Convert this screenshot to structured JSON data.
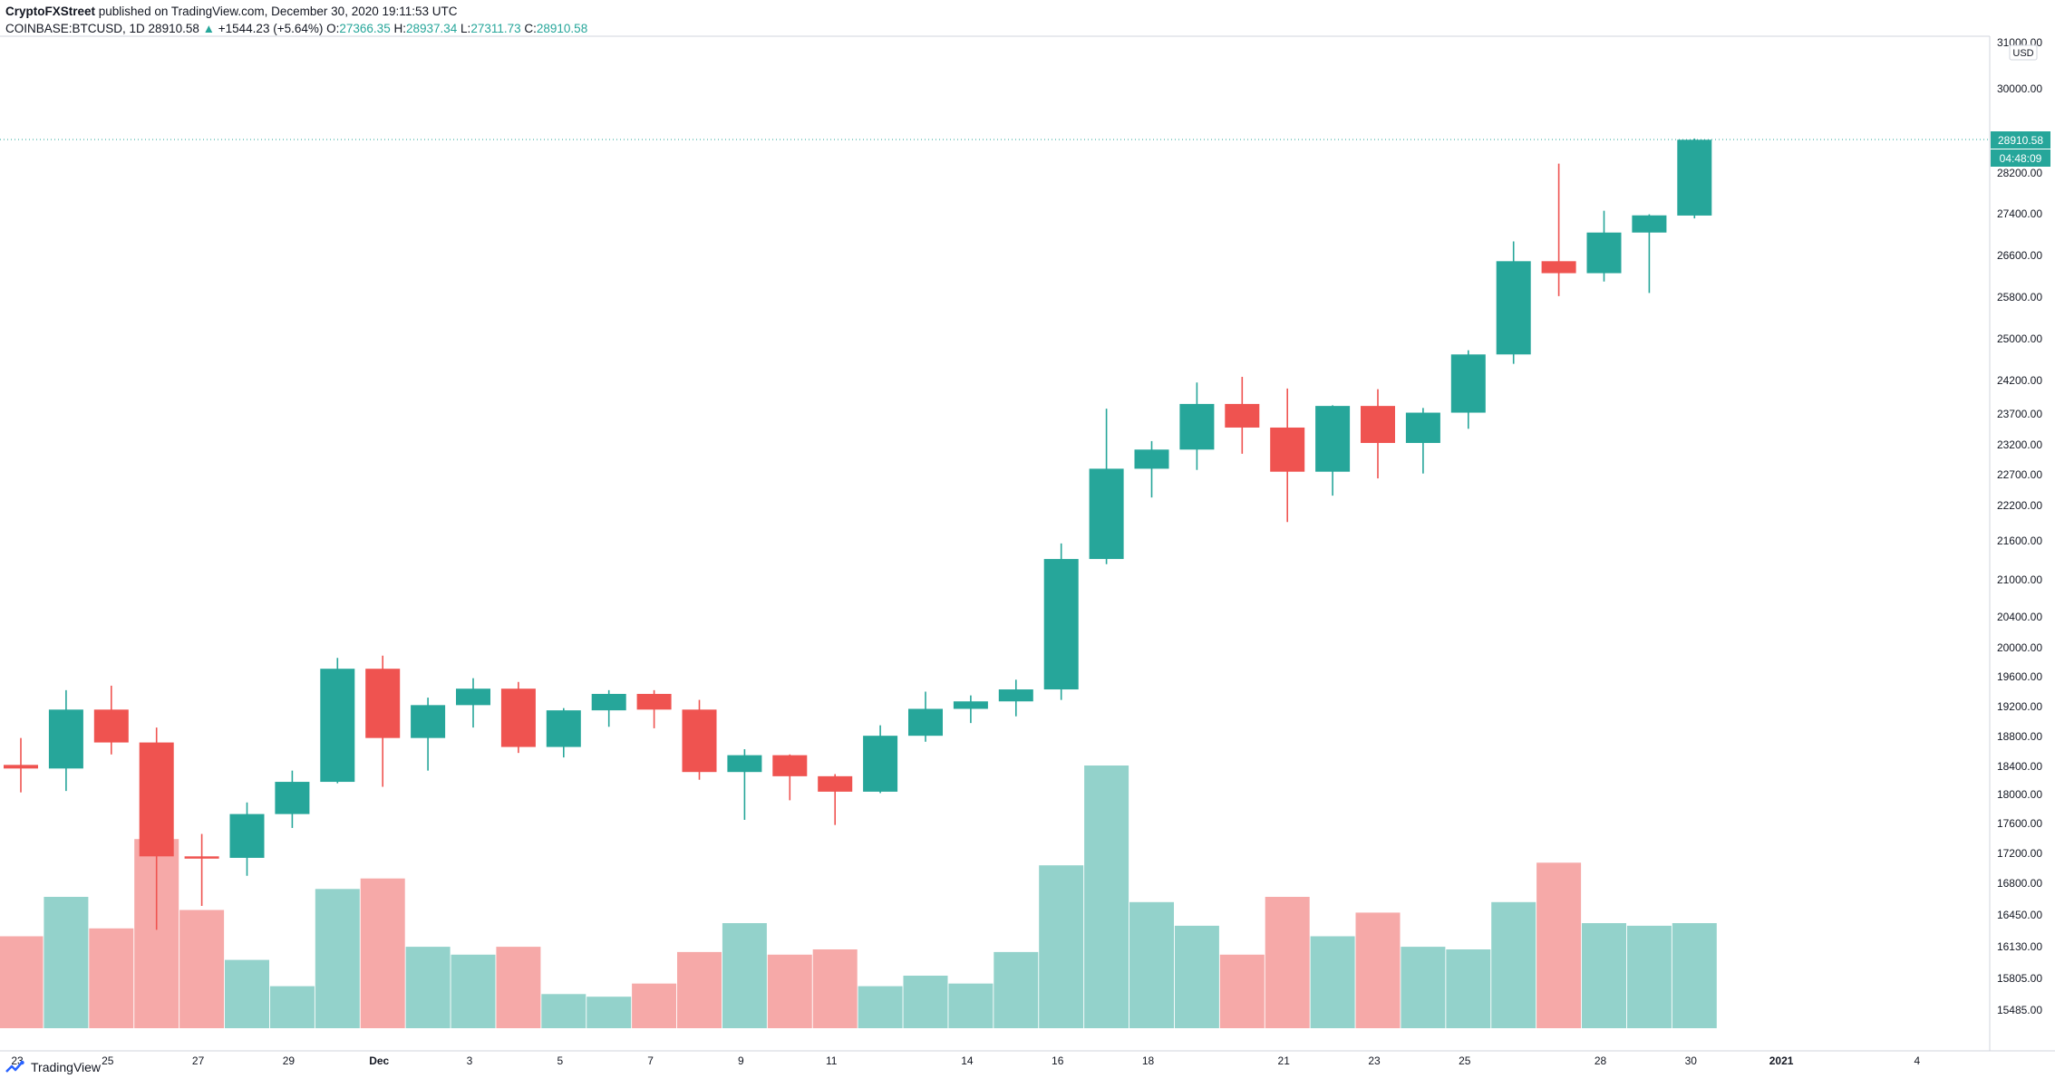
{
  "header": {
    "publisher": "CryptoFXStreet",
    "published_text": "published on TradingView.com, December 30, 2020 19:11:53 UTC",
    "symbol": "COINBASE:BTCUSD, 1D",
    "last": "28910.58",
    "change": "+1544.23 (+5.64%)",
    "open_label": "O:",
    "open": "27366.35",
    "high_label": "H:",
    "high": "28937.34",
    "low_label": "L:",
    "low": "27311.73",
    "close_label": "C:",
    "close": "28910.58"
  },
  "price_scale": {
    "currency": "USD",
    "last_price_tag": "28910.58",
    "countdown_tag": "04:48:09"
  },
  "footer": {
    "brand": "TradingView"
  },
  "colors": {
    "up": "#26a69a",
    "down": "#ef5350",
    "vol_up": "#93d2cb",
    "vol_down": "#f6a9a8",
    "grid": "#ffffff",
    "axis_text": "#131722"
  },
  "chart_data": {
    "type": "candlestick",
    "symbol": "COINBASE:BTCUSD",
    "interval": "1D",
    "y_ticks": [
      31000,
      30000,
      28200,
      27400,
      26600,
      25800,
      25000,
      24200,
      23700,
      23200,
      22700,
      22200,
      21600,
      21000,
      20400,
      20000,
      19600,
      19200,
      18800,
      18400,
      18000,
      17600,
      17200,
      16800,
      16450,
      16130,
      15805,
      15485
    ],
    "y_tick_labels": [
      "31000.00",
      "30000.00",
      "28200.00",
      "27400.00",
      "26600.00",
      "25800.00",
      "25000.00",
      "24200.00",
      "23700.00",
      "23200.00",
      "22700.00",
      "22200.00",
      "21600.00",
      "21000.00",
      "20400.00",
      "20000.00",
      "19600.00",
      "19200.00",
      "18800.00",
      "18400.00",
      "18000.00",
      "17600.00",
      "17200.00",
      "16800.00",
      "16450.00",
      "16130.00",
      "15805.00",
      "15485.00"
    ],
    "x_tick_labels": [
      {
        "label": "23",
        "date": "2020-11-23"
      },
      {
        "label": "25",
        "date": "2020-11-25"
      },
      {
        "label": "27",
        "date": "2020-11-27"
      },
      {
        "label": "29",
        "date": "2020-11-29"
      },
      {
        "label": "Dec",
        "date": "2020-12-01"
      },
      {
        "label": "3",
        "date": "2020-12-03"
      },
      {
        "label": "5",
        "date": "2020-12-05"
      },
      {
        "label": "7",
        "date": "2020-12-07"
      },
      {
        "label": "9",
        "date": "2020-12-09"
      },
      {
        "label": "11",
        "date": "2020-12-11"
      },
      {
        "label": "14",
        "date": "2020-12-14"
      },
      {
        "label": "16",
        "date": "2020-12-16"
      },
      {
        "label": "18",
        "date": "2020-12-18"
      },
      {
        "label": "21",
        "date": "2020-12-21"
      },
      {
        "label": "23",
        "date": "2020-12-23"
      },
      {
        "label": "25",
        "date": "2020-12-25"
      },
      {
        "label": "28",
        "date": "2020-12-28"
      },
      {
        "label": "30",
        "date": "2020-12-30"
      },
      {
        "label": "2021",
        "date": "2021-01-01"
      },
      {
        "label": "4",
        "date": "2021-01-04"
      }
    ],
    "candles": [
      {
        "date": "2020-11-23",
        "o": 18420,
        "h": 18780,
        "l": 18030,
        "c": 18370
      },
      {
        "date": "2020-11-24",
        "o": 18370,
        "h": 19420,
        "l": 18050,
        "c": 19160
      },
      {
        "date": "2020-11-25",
        "o": 19160,
        "h": 19480,
        "l": 18560,
        "c": 18720
      },
      {
        "date": "2020-11-26",
        "o": 18720,
        "h": 18920,
        "l": 16300,
        "c": 17160
      },
      {
        "date": "2020-11-27",
        "o": 17160,
        "h": 17460,
        "l": 16550,
        "c": 17140
      },
      {
        "date": "2020-11-28",
        "o": 17140,
        "h": 17890,
        "l": 16900,
        "c": 17730
      },
      {
        "date": "2020-11-29",
        "o": 17730,
        "h": 18340,
        "l": 17540,
        "c": 18180
      },
      {
        "date": "2020-11-30",
        "o": 18180,
        "h": 19860,
        "l": 18160,
        "c": 19710
      },
      {
        "date": "2020-12-01",
        "o": 19710,
        "h": 19890,
        "l": 18110,
        "c": 18780
      },
      {
        "date": "2020-12-02",
        "o": 18780,
        "h": 19320,
        "l": 18340,
        "c": 19220
      },
      {
        "date": "2020-12-03",
        "o": 19220,
        "h": 19580,
        "l": 18920,
        "c": 19440
      },
      {
        "date": "2020-12-04",
        "o": 19440,
        "h": 19530,
        "l": 18580,
        "c": 18660
      },
      {
        "date": "2020-12-05",
        "o": 18660,
        "h": 19180,
        "l": 18520,
        "c": 19150
      },
      {
        "date": "2020-12-06",
        "o": 19150,
        "h": 19420,
        "l": 18930,
        "c": 19370
      },
      {
        "date": "2020-12-07",
        "o": 19370,
        "h": 19420,
        "l": 18910,
        "c": 19160
      },
      {
        "date": "2020-12-08",
        "o": 19160,
        "h": 19290,
        "l": 18210,
        "c": 18320
      },
      {
        "date": "2020-12-09",
        "o": 18320,
        "h": 18630,
        "l": 17650,
        "c": 18550
      },
      {
        "date": "2020-12-10",
        "o": 18550,
        "h": 18560,
        "l": 17920,
        "c": 18260
      },
      {
        "date": "2020-12-11",
        "o": 18260,
        "h": 18290,
        "l": 17580,
        "c": 18040
      },
      {
        "date": "2020-12-12",
        "o": 18040,
        "h": 18950,
        "l": 18020,
        "c": 18810
      },
      {
        "date": "2020-12-13",
        "o": 18810,
        "h": 19400,
        "l": 18730,
        "c": 19170
      },
      {
        "date": "2020-12-14",
        "o": 19170,
        "h": 19350,
        "l": 18980,
        "c": 19270
      },
      {
        "date": "2020-12-15",
        "o": 19270,
        "h": 19560,
        "l": 19070,
        "c": 19430
      },
      {
        "date": "2020-12-16",
        "o": 19430,
        "h": 21560,
        "l": 19290,
        "c": 21320
      },
      {
        "date": "2020-12-17",
        "o": 21320,
        "h": 23780,
        "l": 21240,
        "c": 22800
      },
      {
        "date": "2020-12-18",
        "o": 22800,
        "h": 23260,
        "l": 22330,
        "c": 23120
      },
      {
        "date": "2020-12-19",
        "o": 23120,
        "h": 24170,
        "l": 22780,
        "c": 23850
      },
      {
        "date": "2020-12-20",
        "o": 23850,
        "h": 24270,
        "l": 23050,
        "c": 23480
      },
      {
        "date": "2020-12-21",
        "o": 23480,
        "h": 24080,
        "l": 21920,
        "c": 22750
      },
      {
        "date": "2020-12-22",
        "o": 22750,
        "h": 23830,
        "l": 22360,
        "c": 23820
      },
      {
        "date": "2020-12-23",
        "o": 23820,
        "h": 24070,
        "l": 22640,
        "c": 23230
      },
      {
        "date": "2020-12-24",
        "o": 23230,
        "h": 23790,
        "l": 22720,
        "c": 23720
      },
      {
        "date": "2020-12-25",
        "o": 23720,
        "h": 24780,
        "l": 23460,
        "c": 24700
      },
      {
        "date": "2020-12-26",
        "o": 24700,
        "h": 26870,
        "l": 24520,
        "c": 26490
      },
      {
        "date": "2020-12-27",
        "o": 26490,
        "h": 28400,
        "l": 25820,
        "c": 26260
      },
      {
        "date": "2020-12-28",
        "o": 26260,
        "h": 27460,
        "l": 26100,
        "c": 27040
      },
      {
        "date": "2020-12-29",
        "o": 27040,
        "h": 27390,
        "l": 25880,
        "c": 27370
      },
      {
        "date": "2020-12-30",
        "o": 27366.35,
        "h": 28937.34,
        "l": 27311.73,
        "c": 28910.58
      }
    ],
    "volume": [
      0.35,
      0.5,
      0.38,
      0.72,
      0.45,
      0.26,
      0.16,
      0.53,
      0.57,
      0.31,
      0.28,
      0.31,
      0.13,
      0.12,
      0.17,
      0.29,
      0.4,
      0.28,
      0.3,
      0.16,
      0.2,
      0.17,
      0.29,
      0.62,
      1.0,
      0.48,
      0.39,
      0.28,
      0.5,
      0.35,
      0.44,
      0.31,
      0.3,
      0.48,
      0.63,
      0.4,
      0.39,
      0.4
    ],
    "volume_note": "relative volume (max bar = 1)"
  }
}
